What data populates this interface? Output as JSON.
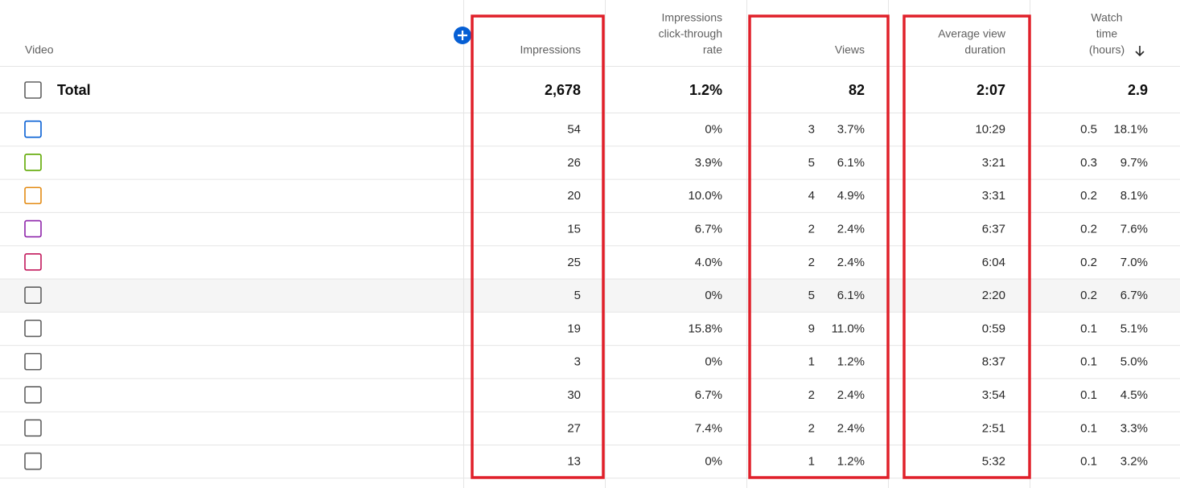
{
  "table": {
    "headers": [
      [
        "Video"
      ],
      [
        "Impressions"
      ],
      [
        "Impressions",
        "click-through",
        "rate"
      ],
      [
        "Views"
      ],
      [
        "Average view",
        "duration"
      ],
      [
        "Watch",
        "time",
        "(hours)"
      ]
    ],
    "total": {
      "label": "Total",
      "values": [
        "2,678",
        "1.2%",
        "82",
        "2:07",
        "2.9"
      ]
    },
    "checkbox_colors": [
      "#065fd4",
      "#5ea800",
      "#e38b14",
      "#8e24aa",
      "#c2185b",
      "#606060",
      "#606060",
      "#606060",
      "#606060",
      "#606060",
      "#606060"
    ],
    "rows": [
      [
        "54",
        "0%",
        "3",
        "3.7%",
        "10:29",
        "0.5",
        "18.1%"
      ],
      [
        "26",
        "3.9%",
        "5",
        "6.1%",
        "3:21",
        "0.3",
        "9.7%"
      ],
      [
        "20",
        "10.0%",
        "4",
        "4.9%",
        "3:31",
        "0.2",
        "8.1%"
      ],
      [
        "15",
        "6.7%",
        "2",
        "2.4%",
        "6:37",
        "0.2",
        "7.6%"
      ],
      [
        "25",
        "4.0%",
        "2",
        "2.4%",
        "6:04",
        "0.2",
        "7.0%"
      ],
      [
        "5",
        "0%",
        "5",
        "6.1%",
        "2:20",
        "0.2",
        "6.7%"
      ],
      [
        "19",
        "15.8%",
        "9",
        "11.0%",
        "0:59",
        "0.1",
        "5.1%"
      ],
      [
        "3",
        "0%",
        "1",
        "1.2%",
        "8:37",
        "0.1",
        "5.0%"
      ],
      [
        "30",
        "6.7%",
        "2",
        "2.4%",
        "3:54",
        "0.1",
        "4.5%"
      ],
      [
        "27",
        "7.4%",
        "2",
        "2.4%",
        "2:51",
        "0.1",
        "3.3%"
      ],
      [
        "13",
        "0%",
        "1",
        "1.2%",
        "5:32",
        "0.1",
        "3.2%"
      ]
    ]
  }
}
